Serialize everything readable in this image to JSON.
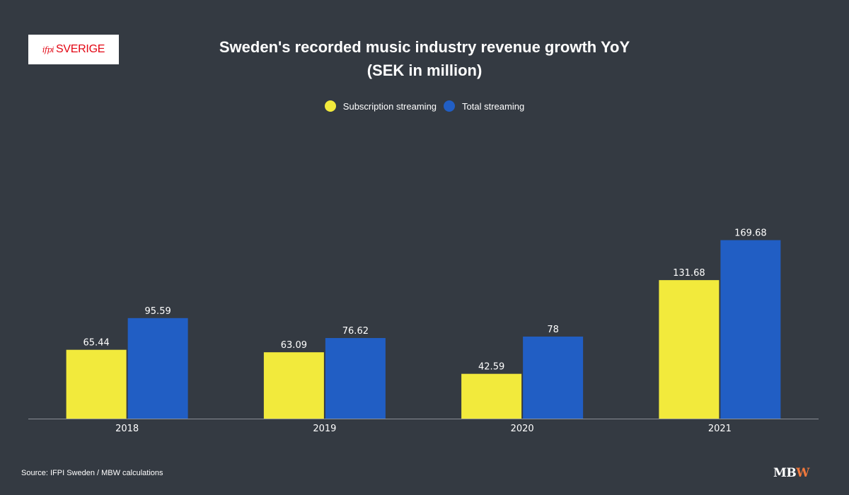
{
  "logo": {
    "mark": "ifpi",
    "text": "SVERIGE"
  },
  "title_line1": "Sweden's recorded music industry revenue growth YoY",
  "title_line2": "(SEK in million)",
  "source": "Source: IFPI Sweden / MBW calculations",
  "brand": {
    "part1": "MB",
    "part2": "W"
  },
  "colors": {
    "background": "#343a42",
    "subscription": "#f2ea3c",
    "total": "#215ec4"
  },
  "chart_data": {
    "type": "bar",
    "categories": [
      "2018",
      "2019",
      "2020",
      "2021"
    ],
    "series": [
      {
        "name": "Subscription streaming",
        "color": "#f2ea3c",
        "values": [
          65.44,
          63.09,
          42.59,
          131.68
        ]
      },
      {
        "name": "Total streaming",
        "color": "#215ec4",
        "values": [
          95.59,
          76.62,
          78,
          169.68
        ]
      }
    ],
    "value_labels": [
      [
        "65.44",
        "63.09",
        "42.59",
        "131.68"
      ],
      [
        "95.59",
        "76.62",
        "78",
        "169.68"
      ]
    ],
    "title": "Sweden's recorded music industry revenue growth YoY (SEK in million)",
    "ylim": [
      0,
      240
    ],
    "grid": false,
    "legend": "top-center"
  }
}
